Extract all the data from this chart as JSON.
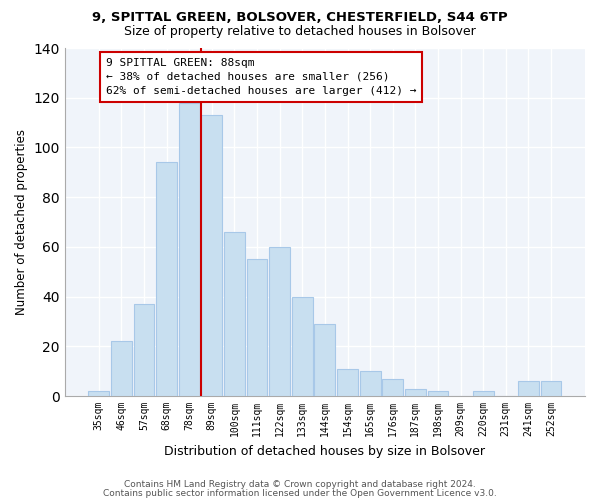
{
  "title1": "9, SPITTAL GREEN, BOLSOVER, CHESTERFIELD, S44 6TP",
  "title2": "Size of property relative to detached houses in Bolsover",
  "xlabel": "Distribution of detached houses by size in Bolsover",
  "ylabel": "Number of detached properties",
  "bin_labels": [
    "35sqm",
    "46sqm",
    "57sqm",
    "68sqm",
    "78sqm",
    "89sqm",
    "100sqm",
    "111sqm",
    "122sqm",
    "133sqm",
    "144sqm",
    "154sqm",
    "165sqm",
    "176sqm",
    "187sqm",
    "198sqm",
    "209sqm",
    "220sqm",
    "231sqm",
    "241sqm",
    "252sqm"
  ],
  "bar_values": [
    2,
    22,
    37,
    94,
    118,
    113,
    66,
    55,
    60,
    40,
    29,
    11,
    10,
    7,
    3,
    2,
    0,
    2,
    0,
    6,
    6
  ],
  "bar_color": "#c8dff0",
  "bar_edge_color": "#a8c8e8",
  "vline_color": "#cc0000",
  "vline_x": 4.5,
  "annotation_title": "9 SPITTAL GREEN: 88sqm",
  "annotation_line1": "← 38% of detached houses are smaller (256)",
  "annotation_line2": "62% of semi-detached houses are larger (412) →",
  "annotation_box_color": "white",
  "annotation_box_edge": "#cc0000",
  "ylim": [
    0,
    140
  ],
  "yticks": [
    0,
    20,
    40,
    60,
    80,
    100,
    120,
    140
  ],
  "footer1": "Contains HM Land Registry data © Crown copyright and database right 2024.",
  "footer2": "Contains public sector information licensed under the Open Government Licence v3.0.",
  "bg_color": "#f0f4fa"
}
